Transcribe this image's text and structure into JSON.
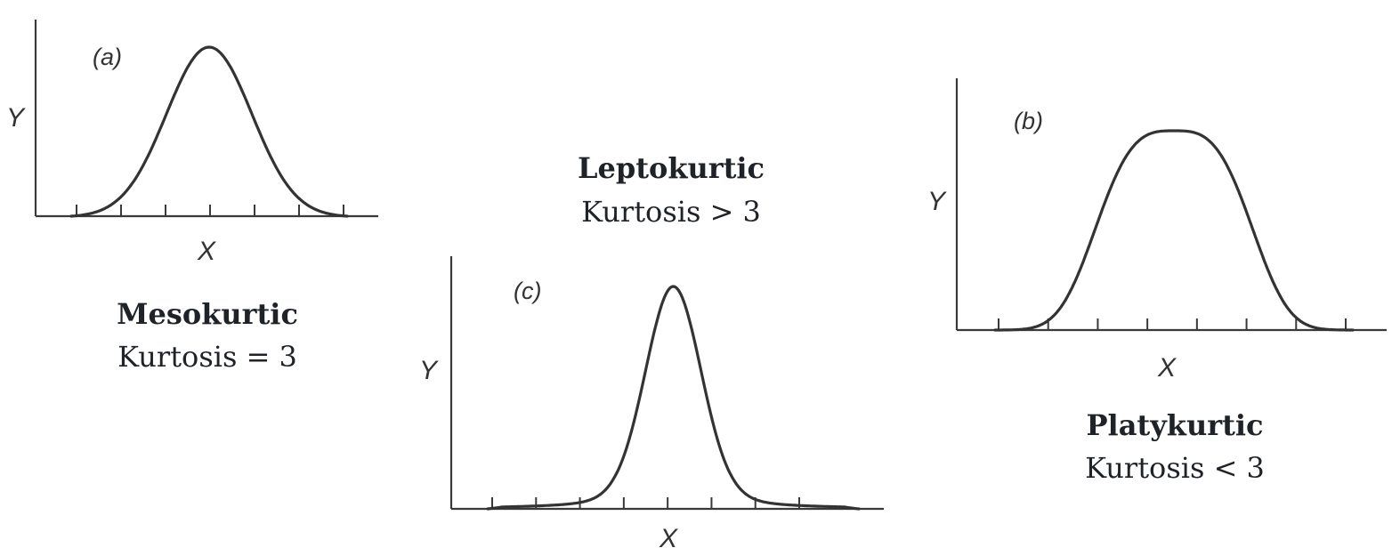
{
  "colors": {
    "curve": "#333333",
    "axis": "#3a3a3a",
    "text": "#1f2328"
  },
  "panels": [
    {
      "id": "mesokurtic",
      "panel_letter": "(a)",
      "x_label": "X",
      "y_label": "Y",
      "title": "Mesokurtic",
      "subtitle": "Kurtosis = 3",
      "tick_count": 7,
      "shape": "normal"
    },
    {
      "id": "leptokurtic",
      "panel_letter": "(c)",
      "x_label": "X",
      "y_label": "Y",
      "title": "Leptokurtic",
      "subtitle": "Kurtosis > 3",
      "tick_count": 8,
      "shape": "peaked"
    },
    {
      "id": "platykurtic",
      "panel_letter": "(b)",
      "x_label": "X",
      "y_label": "Y",
      "title": "Platykurtic",
      "subtitle": "Kurtosis < 3",
      "tick_count": 8,
      "shape": "flat"
    }
  ]
}
